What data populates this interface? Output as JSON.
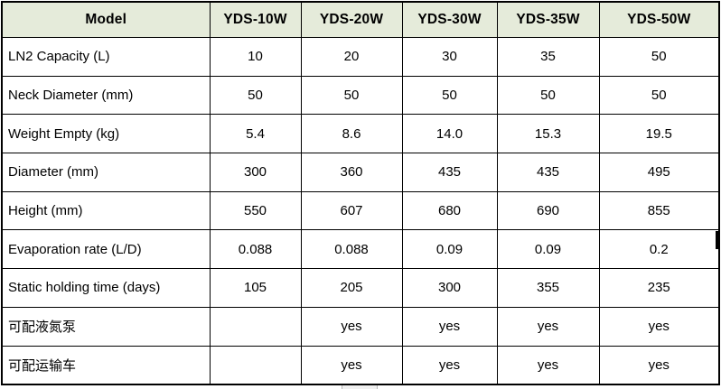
{
  "colors": {
    "header_bg": "#e5ebda",
    "border": "#000000",
    "text": "#000000",
    "scrollbar_thumb": "#f0f0f0"
  },
  "table": {
    "columns": [
      "Model",
      "YDS-10W",
      "YDS-20W",
      "YDS-30W",
      "YDS-35W",
      "YDS-50W"
    ],
    "rows": [
      {
        "label": "LN2 Capacity (L)",
        "values": [
          "10",
          "20",
          "30",
          "35",
          "50"
        ]
      },
      {
        "label": "Neck Diameter (mm)",
        "values": [
          "50",
          "50",
          "50",
          "50",
          "50"
        ]
      },
      {
        "label": "Weight Empty (kg)",
        "values": [
          "5.4",
          "8.6",
          "14.0",
          "15.3",
          "19.5"
        ]
      },
      {
        "label": "Diameter (mm)",
        "values": [
          "300",
          "360",
          "435",
          "435",
          "495"
        ]
      },
      {
        "label": "Height (mm)",
        "values": [
          "550",
          "607",
          "680",
          "690",
          "855"
        ]
      },
      {
        "label": "Evaporation rate (L/D)",
        "values": [
          "0.088",
          "0.088",
          "0.09",
          "0.09",
          "0.2"
        ]
      },
      {
        "label": "Static holding time (days)",
        "values": [
          "105",
          "205",
          "300",
          "355",
          "235"
        ]
      },
      {
        "label": "可配液氮泵",
        "values": [
          "",
          "yes",
          "yes",
          "yes",
          "yes"
        ]
      },
      {
        "label": "可配运输车",
        "values": [
          "",
          "yes",
          "yes",
          "yes",
          "yes"
        ]
      }
    ]
  }
}
